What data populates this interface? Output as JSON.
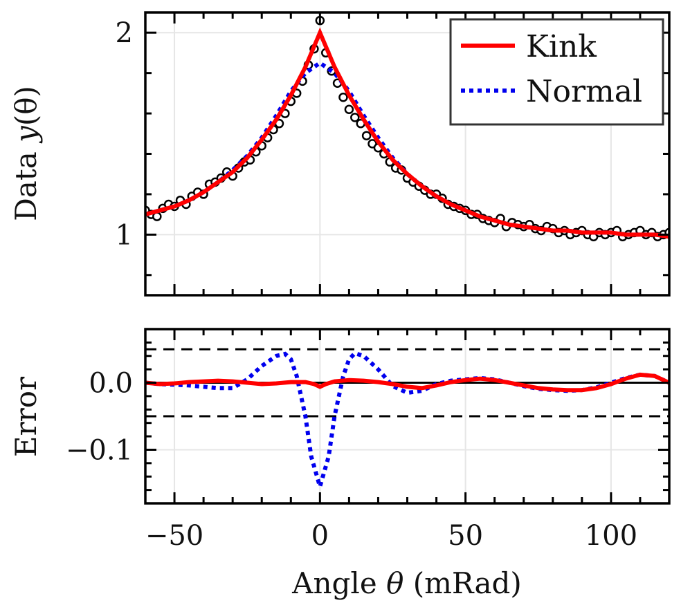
{
  "chart_data": [
    {
      "panel": "top",
      "type": "line",
      "title": "",
      "xlabel": "",
      "ylabel_prefix": "Data ",
      "ylabel_var": "y",
      "ylabel_suffix": "(θ)",
      "xlim": [
        -60,
        120
      ],
      "ylim": [
        0.7,
        2.1
      ],
      "grid": true,
      "legend_position": "top-right",
      "x_ticks": [
        -50,
        0,
        50,
        100
      ],
      "y_ticks": [
        1,
        2
      ],
      "y_tick_labels": [
        "1",
        "2"
      ],
      "series": [
        {
          "name": "Kink",
          "style": "solid",
          "color": "#ff0000",
          "x": [
            -60,
            -55,
            -50,
            -45,
            -40,
            -35,
            -30,
            -25,
            -20,
            -15,
            -10,
            -5,
            0,
            5,
            10,
            15,
            20,
            25,
            30,
            35,
            40,
            45,
            50,
            55,
            60,
            65,
            70,
            75,
            80,
            85,
            90,
            95,
            100,
            105,
            110,
            115,
            120
          ],
          "y": [
            1.1,
            1.12,
            1.14,
            1.17,
            1.21,
            1.26,
            1.31,
            1.38,
            1.47,
            1.57,
            1.69,
            1.83,
            2.0,
            1.83,
            1.69,
            1.57,
            1.46,
            1.37,
            1.3,
            1.24,
            1.19,
            1.15,
            1.12,
            1.09,
            1.07,
            1.05,
            1.04,
            1.03,
            1.02,
            1.02,
            1.01,
            1.01,
            1.01,
            1.0,
            1.0,
            1.0,
            0.99
          ]
        },
        {
          "name": "Normal",
          "style": "dotted",
          "color": "#0000ee",
          "x": [
            -60,
            -55,
            -50,
            -45,
            -40,
            -35,
            -30,
            -25,
            -20,
            -15,
            -10,
            -5,
            0,
            5,
            10,
            15,
            20,
            25,
            30,
            35,
            40,
            45,
            50,
            55,
            60,
            65,
            70,
            75,
            80,
            85,
            90,
            95,
            100,
            105,
            110,
            115,
            120
          ],
          "y": [
            1.1,
            1.12,
            1.14,
            1.17,
            1.21,
            1.26,
            1.32,
            1.39,
            1.48,
            1.59,
            1.71,
            1.8,
            1.85,
            1.8,
            1.71,
            1.59,
            1.48,
            1.38,
            1.3,
            1.24,
            1.19,
            1.15,
            1.12,
            1.09,
            1.07,
            1.05,
            1.04,
            1.03,
            1.02,
            1.02,
            1.01,
            1.01,
            1.01,
            1.0,
            1.0,
            1.0,
            0.99
          ]
        },
        {
          "name": "Data",
          "style": "markers",
          "marker": "open-circle",
          "color": "#000000",
          "x": [
            -60,
            -58,
            -56,
            -54,
            -52,
            -50,
            -48,
            -46,
            -44,
            -42,
            -40,
            -38,
            -36,
            -34,
            -32,
            -30,
            -28,
            -26,
            -24,
            -22,
            -20,
            -18,
            -16,
            -14,
            -12,
            -10,
            -8,
            -6,
            -4,
            -2,
            0,
            2,
            4,
            6,
            8,
            10,
            12,
            14,
            16,
            18,
            20,
            22,
            24,
            26,
            28,
            30,
            32,
            34,
            36,
            38,
            40,
            42,
            44,
            46,
            48,
            50,
            52,
            54,
            56,
            58,
            60,
            62,
            64,
            66,
            68,
            70,
            72,
            74,
            76,
            78,
            80,
            82,
            84,
            86,
            88,
            90,
            92,
            94,
            96,
            98,
            100,
            102,
            104,
            106,
            108,
            110,
            112,
            114,
            116,
            118,
            120
          ],
          "y": [
            1.12,
            1.1,
            1.09,
            1.13,
            1.15,
            1.14,
            1.17,
            1.15,
            1.19,
            1.21,
            1.2,
            1.25,
            1.26,
            1.28,
            1.31,
            1.29,
            1.33,
            1.36,
            1.37,
            1.41,
            1.44,
            1.48,
            1.52,
            1.55,
            1.6,
            1.66,
            1.7,
            1.76,
            1.84,
            1.92,
            2.06,
            1.9,
            1.81,
            1.75,
            1.68,
            1.62,
            1.58,
            1.55,
            1.49,
            1.45,
            1.43,
            1.4,
            1.36,
            1.33,
            1.32,
            1.28,
            1.26,
            1.24,
            1.22,
            1.2,
            1.2,
            1.18,
            1.15,
            1.14,
            1.13,
            1.12,
            1.1,
            1.1,
            1.08,
            1.07,
            1.06,
            1.08,
            1.04,
            1.06,
            1.05,
            1.04,
            1.05,
            1.03,
            1.02,
            1.04,
            1.03,
            1.01,
            1.02,
            1.0,
            1.01,
            1.02,
            1.0,
            0.99,
            1.01,
            1.0,
            1.01,
            1.02,
            0.99,
            1.0,
            1.01,
            1.02,
            1.0,
            1.01,
            0.99,
            1.0,
            1.01
          ]
        }
      ]
    },
    {
      "panel": "bottom",
      "type": "line",
      "title": "",
      "xlabel_prefix": "Angle ",
      "xlabel_var": "θ",
      "xlabel_suffix": " (mRad)",
      "ylabel": "Error",
      "xlim": [
        -60,
        120
      ],
      "ylim": [
        -0.18,
        0.08
      ],
      "grid": true,
      "x_ticks": [
        -50,
        0,
        50,
        100
      ],
      "x_tick_labels": [
        "−50",
        "0",
        "50",
        "100"
      ],
      "y_ticks": [
        0.0,
        -0.1
      ],
      "y_tick_labels": [
        "0.0",
        "−0.1"
      ],
      "reference_lines": [
        {
          "y": 0.05,
          "style": "dashed",
          "color": "#000000"
        },
        {
          "y": 0.0,
          "style": "solid",
          "color": "#000000"
        },
        {
          "y": -0.05,
          "style": "dashed",
          "color": "#000000"
        }
      ],
      "series": [
        {
          "name": "Kink",
          "style": "solid",
          "color": "#ff0000",
          "x": [
            -60,
            -55,
            -50,
            -45,
            -40,
            -35,
            -30,
            -25,
            -20,
            -15,
            -10,
            -5,
            -2,
            0,
            2,
            5,
            10,
            15,
            20,
            25,
            30,
            35,
            40,
            45,
            50,
            55,
            60,
            65,
            70,
            75,
            80,
            85,
            90,
            95,
            100,
            105,
            110,
            115,
            120
          ],
          "y": [
            0.0,
            -0.002,
            -0.001,
            0.001,
            0.002,
            0.003,
            0.002,
            0.0,
            -0.002,
            -0.001,
            0.001,
            0.001,
            -0.002,
            -0.006,
            -0.002,
            0.002,
            0.004,
            0.003,
            0.001,
            -0.002,
            -0.006,
            -0.008,
            -0.004,
            0.001,
            0.004,
            0.006,
            0.004,
            0.0,
            -0.004,
            -0.008,
            -0.01,
            -0.011,
            -0.011,
            -0.008,
            -0.002,
            0.006,
            0.012,
            0.01,
            0.0
          ]
        },
        {
          "name": "Normal",
          "style": "dotted",
          "color": "#0000ee",
          "x": [
            -60,
            -55,
            -50,
            -45,
            -40,
            -35,
            -30,
            -25,
            -20,
            -15,
            -12,
            -10,
            -8,
            -5,
            -3,
            0,
            3,
            5,
            8,
            10,
            12,
            15,
            20,
            25,
            30,
            35,
            40,
            45,
            50,
            55,
            60,
            65,
            70,
            75,
            80,
            85,
            90,
            95,
            100,
            105,
            110,
            115,
            120
          ],
          "y": [
            0.0,
            -0.002,
            -0.003,
            -0.004,
            -0.006,
            -0.008,
            -0.008,
            0.005,
            0.025,
            0.04,
            0.043,
            0.035,
            0.01,
            -0.05,
            -0.11,
            -0.155,
            -0.11,
            -0.05,
            0.01,
            0.035,
            0.044,
            0.04,
            0.02,
            -0.005,
            -0.015,
            -0.012,
            -0.002,
            0.003,
            0.005,
            0.007,
            0.005,
            0.0,
            -0.005,
            -0.009,
            -0.011,
            -0.012,
            -0.011,
            -0.007,
            0.0,
            0.007,
            0.012,
            0.01,
            0.0
          ]
        }
      ]
    }
  ]
}
